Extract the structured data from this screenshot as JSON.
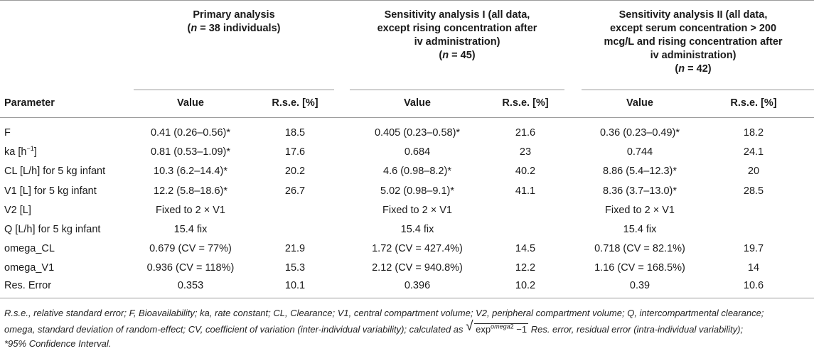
{
  "groups": [
    {
      "line1": "Primary analysis",
      "n_prefix": "(",
      "n_var": "n",
      "n_suffix": " = 38 individuals)"
    },
    {
      "line1": "Sensitivity analysis I (all data,",
      "line2": "except rising concentration after",
      "line3": "iv administration)",
      "n_prefix": "(",
      "n_var": "n",
      "n_suffix": " = 45)"
    },
    {
      "line1": "Sensitivity analysis II (all data,",
      "line2": "except serum concentration > 200",
      "line3": "mcg/L and rising concentration after",
      "line4": "iv administration)",
      "n_prefix": "(",
      "n_var": "n",
      "n_suffix": " = 42)"
    }
  ],
  "headers": {
    "param": "Parameter",
    "value": "Value",
    "rse": "R.s.e. [%]"
  },
  "rows": [
    {
      "param": "F",
      "v1": "0.41 (0.26–0.56)*",
      "r1": "18.5",
      "v2": "0.405 (0.23–0.58)*",
      "r2": "21.6",
      "v3": "0.36 (0.23–0.49)*",
      "r3": "18.2"
    },
    {
      "param_base": "ka [h",
      "param_sup": "−1",
      "param_end": "]",
      "v1": "0.81 (0.53–1.09)*",
      "r1": "17.6",
      "v2": "0.684",
      "r2": "23",
      "v3": "0.744",
      "r3": "24.1"
    },
    {
      "param": "CL [L/h] for 5 kg infant",
      "v1": "10.3 (6.2–14.4)*",
      "r1": "20.2",
      "v2": "4.6 (0.98–8.2)*",
      "r2": "40.2",
      "v3": "8.86 (5.4–12.3)*",
      "r3": "20"
    },
    {
      "param": "V1 [L] for 5 kg infant",
      "v1": "12.2 (5.8–18.6)*",
      "r1": "26.7",
      "v2": "5.02 (0.98–9.1)*",
      "r2": "41.1",
      "v3": "8.36 (3.7–13.0)*",
      "r3": "28.5"
    },
    {
      "param": "V2 [L]",
      "v1": "Fixed to 2 × V1",
      "r1": "",
      "v2": "Fixed to 2 × V1",
      "r2": "",
      "v3": "Fixed to 2 × V1",
      "r3": ""
    },
    {
      "param": "Q [L/h] for 5 kg infant",
      "v1": "15.4 fix",
      "r1": "",
      "v2": "15.4 fix",
      "r2": "",
      "v3": "15.4 fix",
      "r3": ""
    },
    {
      "param": "omega_CL",
      "v1": "0.679 (CV = 77%)",
      "r1": "21.9",
      "v2": "1.72 (CV = 427.4%)",
      "r2": "14.5",
      "v3": "0.718 (CV = 82.1%)",
      "r3": "19.7"
    },
    {
      "param": "omega_V1",
      "v1": "0.936 (CV = 118%)",
      "r1": "15.3",
      "v2": "2.12 (CV = 940.8%)",
      "r2": "12.2",
      "v3": "1.16 (CV = 168.5%)",
      "r3": "14"
    },
    {
      "param": "Res. Error",
      "v1": "0.353",
      "r1": "10.1",
      "v2": "0.396",
      "r2": "10.2",
      "v3": "0.39",
      "r3": "10.6"
    }
  ],
  "footnote": {
    "line1": "R.s.e., relative standard error; F, Bioavailability; ka, rate constant; CL, Clearance; V1, central compartment volume; V2, peripheral compartment volume; Q, intercompartmental clearance;",
    "line2_pre": "omega, standard deviation of random-effect; CV, coefficient of variation (inter-individual variability); calculated as",
    "sqrt_base": "exp",
    "sqrt_sup_base": "omega",
    "sqrt_sup_exp": "2",
    "sqrt_tail": " −1",
    "line2_post": "Res. error, residual error (intra-individual variability);",
    "line3": "*95% Confidence Interval."
  }
}
